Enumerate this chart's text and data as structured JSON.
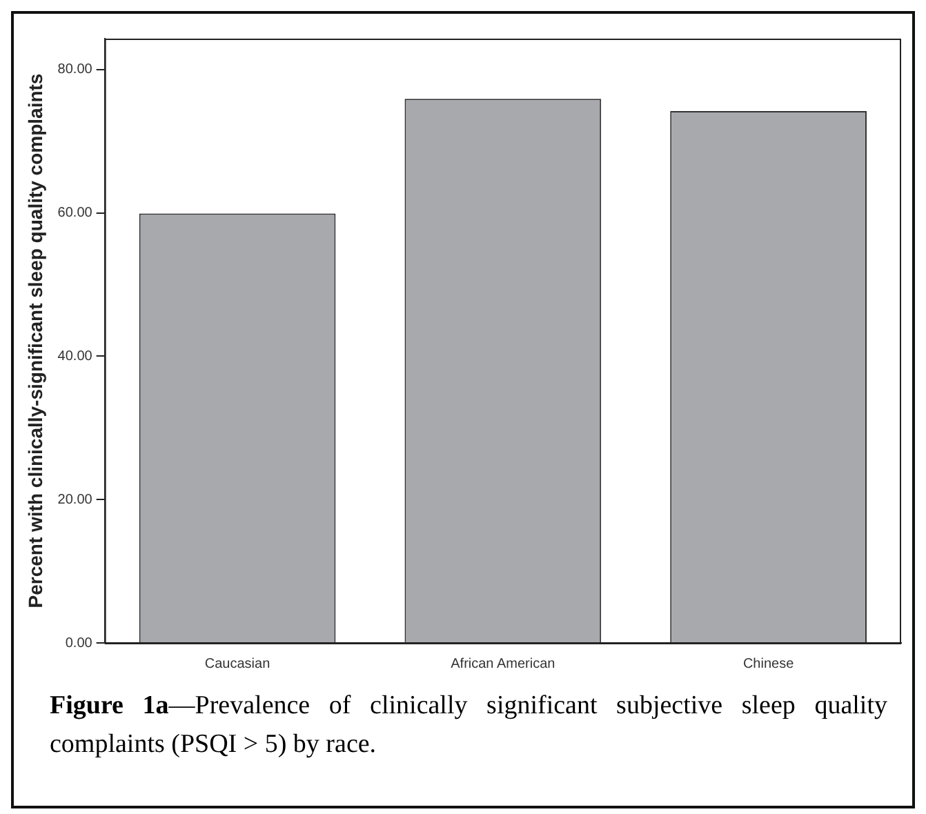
{
  "chart_data": {
    "type": "bar",
    "ylabel": "Percent with clinically-significant sleep quality complaints",
    "categories": [
      "Caucasian",
      "African American",
      "Chinese"
    ],
    "values": [
      59.9,
      75.9,
      74.2
    ],
    "color": "#a8a9ad",
    "ylim": [
      0,
      84.3
    ],
    "yticks": [
      {
        "value": 0,
        "label": "0.00"
      },
      {
        "value": 20,
        "label": "20.00"
      },
      {
        "value": 40,
        "label": "40.00"
      },
      {
        "value": 60,
        "label": "60.00"
      },
      {
        "value": 80,
        "label": "80.00"
      }
    ],
    "grid": false,
    "legend": false,
    "annotations": [
      "Figure 1a—Prevalence of clinically significant subjective sleep quality complaints (PSQI > 5) by race."
    ]
  }
}
